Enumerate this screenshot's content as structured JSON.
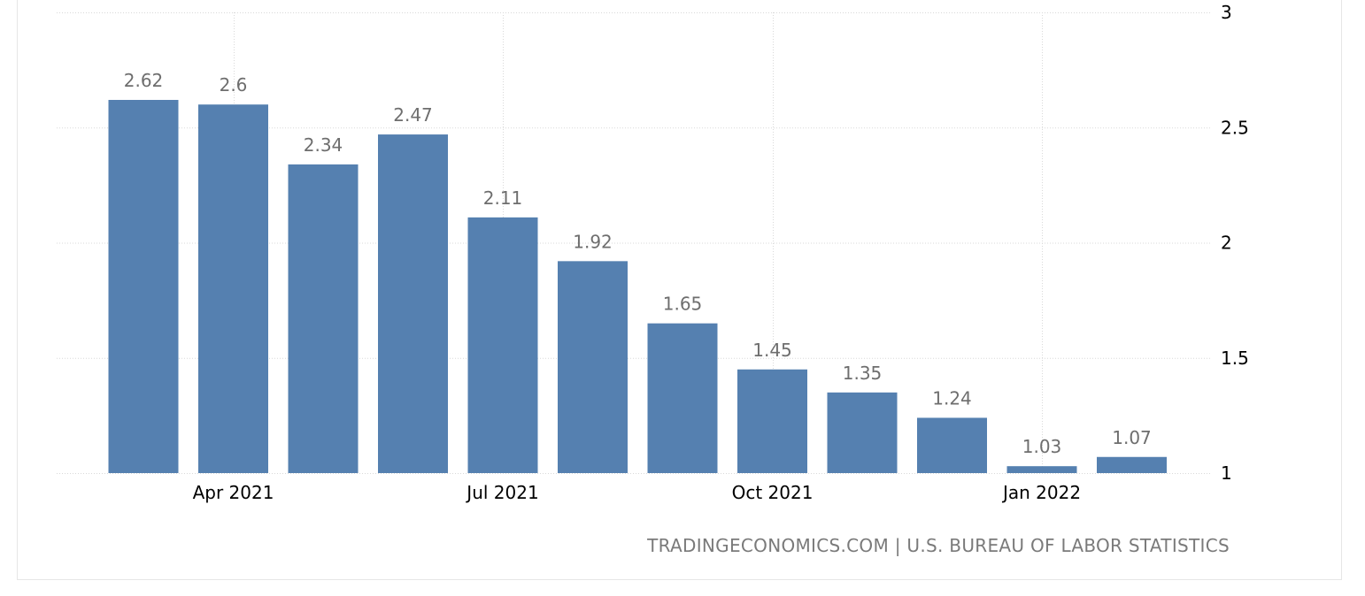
{
  "chart_data": {
    "type": "bar",
    "categories": [
      "Mar 2021",
      "Apr 2021",
      "May 2021",
      "Jun 2021",
      "Jul 2021",
      "Aug 2021",
      "Sep 2021",
      "Oct 2021",
      "Nov 2021",
      "Dec 2021",
      "Jan 2022",
      "Feb 2022"
    ],
    "values": [
      2.62,
      2.6,
      2.34,
      2.47,
      2.11,
      1.92,
      1.65,
      1.45,
      1.35,
      1.24,
      1.03,
      1.07
    ],
    "value_labels": [
      "2.62",
      "2.6",
      "2.34",
      "2.47",
      "2.11",
      "1.92",
      "1.65",
      "1.45",
      "1.35",
      "1.24",
      "1.03",
      "1.07"
    ],
    "x_tick_labels": [
      {
        "label": "Apr 2021",
        "category_index": 1
      },
      {
        "label": "Jul 2021",
        "category_index": 4
      },
      {
        "label": "Oct 2021",
        "category_index": 7
      },
      {
        "label": "Jan 2022",
        "category_index": 10
      }
    ],
    "y_ticks": [
      1,
      1.5,
      2,
      2.5,
      3
    ],
    "ylim": [
      1,
      3
    ],
    "title": "",
    "xlabel": "",
    "ylabel": "",
    "grid": true,
    "y_axis_side": "right",
    "bar_color": "#5580b0"
  },
  "source": "TRADINGECONOMICS.COM | U.S. BUREAU OF LABOR STATISTICS"
}
